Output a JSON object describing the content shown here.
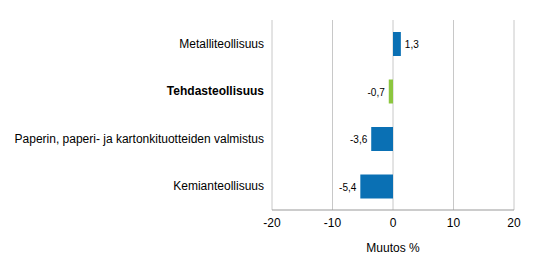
{
  "chart_data": {
    "type": "bar",
    "orientation": "horizontal",
    "categories": [
      "Metalliteollisuus",
      "Tehdasteollisuus",
      "Paperin, paperi- ja kartonkituotteiden valmistus",
      "Kemianteollisuus"
    ],
    "values": [
      1.3,
      -0.7,
      -3.6,
      -5.4
    ],
    "value_labels": [
      "1,3",
      "-0,7",
      "-3,6",
      "-5,4"
    ],
    "colors": [
      "#0a70b4",
      "#8cc63f",
      "#0a70b4",
      "#0a70b4"
    ],
    "xlabel": "Muutos %",
    "xlim": [
      -20,
      20
    ],
    "xticks": [
      -20,
      -10,
      0,
      10,
      20
    ],
    "grid": true,
    "data_labels": true
  }
}
